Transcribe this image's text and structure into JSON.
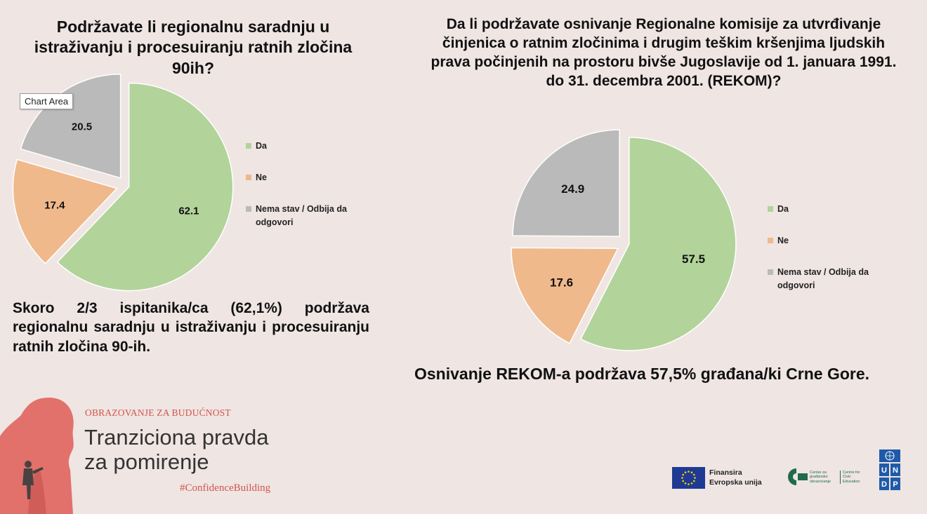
{
  "chart_data": [
    {
      "type": "pie",
      "title": "Podržavate li regionalnu saradnju u istraživanju i procesuiranju ratnih zločina 90ih?",
      "categories": [
        "Da",
        "Ne",
        "Nema stav / Odbija da odgovori"
      ],
      "values": [
        62.1,
        17.4,
        20.5
      ],
      "value_labels": [
        "62.1",
        "17.4",
        "20.5"
      ],
      "colors": [
        "#b2d39a",
        "#efb98b",
        "#bababa"
      ],
      "exploded": true,
      "legend": "right",
      "tooltip": "Chart Area"
    },
    {
      "type": "pie",
      "title": "Da li podržavate osnivanje Regionalne komisije za utvrđivanje činjenica o ratnim zločinima i drugim teškim kršenjima ljudskih prava počinjenih na prostoru bivše Jugoslavije od 1. januara 1991. do 31. decembra 2001. (REKOM)?",
      "categories": [
        "Da",
        "Ne",
        "Nema stav / Odbija da odgovori"
      ],
      "values": [
        57.5,
        17.6,
        24.9
      ],
      "value_labels": [
        "57.5",
        "17.6",
        "24.9"
      ],
      "colors": [
        "#b2d39a",
        "#efb98b",
        "#bababa"
      ],
      "exploded": true,
      "legend": "right"
    }
  ],
  "captions": {
    "left": "Skoro 2/3 ispitanika/ca (62,1%) podržava regionalnu saradnju u istraživanju i procesuiranju ratnih zločina 90-ih.",
    "right": "Osnivanje REKOM-a podržava 57,5% građana/ki Crne Gore."
  },
  "branding": {
    "small": "OBRAZOVANJE ZA BUDUĆNOST",
    "title_line1": "Tranziciona pravda",
    "title_line2": "za pomirenje",
    "hashtag": "#ConfidenceBuilding",
    "eu_line1": "Finansira",
    "eu_line2": "Evropska unija",
    "cgo_text": "Centar za građansko obrazovanje",
    "cgo_text_en": "Centre for Civic Education",
    "undp": "U N D P",
    "accent": "#d3544a"
  }
}
